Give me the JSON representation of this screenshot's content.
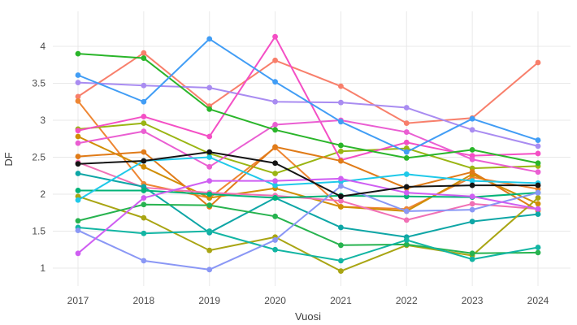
{
  "chart_data": {
    "type": "line",
    "title": "",
    "xlabel": "Vuosi",
    "ylabel": "DF",
    "x": [
      2017,
      2018,
      2019,
      2020,
      2021,
      2022,
      2023,
      2024
    ],
    "xtick_labels": [
      "2017",
      "2018",
      "2019",
      "2020",
      "2021",
      "2022",
      "2023",
      "2024"
    ],
    "yticks": [
      1,
      1.5,
      2,
      2.5,
      3,
      3.5,
      4
    ],
    "ytick_labels": [
      "1",
      "1.5",
      "2",
      "2.5",
      "3",
      "3.5",
      "4"
    ],
    "ylim": [
      0.75,
      4.5
    ],
    "grid": true,
    "legend_position": "none",
    "marker": "circle",
    "grid_color": "#e9e9e9",
    "tick_color": "#4c4c4c",
    "series": [
      {
        "color": "#f87f6b",
        "values": [
          3.32,
          3.91,
          3.19,
          3.81,
          3.46,
          2.96,
          3.03,
          3.78
        ]
      },
      {
        "color": "#a98cf1",
        "values": [
          3.51,
          3.47,
          3.44,
          3.25,
          3.24,
          3.17,
          2.87,
          2.65
        ]
      },
      {
        "color": "#ee8633",
        "values": [
          3.26,
          2.14,
          1.95,
          2.63,
          1.83,
          1.8,
          2.23,
          2.07
        ]
      },
      {
        "color": "#9ab513",
        "values": [
          2.88,
          2.96,
          2.55,
          2.28,
          2.58,
          2.62,
          2.35,
          2.38
        ]
      },
      {
        "color": "#f44fc5",
        "values": [
          2.86,
          3.05,
          2.78,
          4.13,
          2.46,
          2.7,
          2.52,
          2.55
        ]
      },
      {
        "color": "#d08e05",
        "values": [
          2.78,
          2.37,
          1.95,
          2.08,
          1.83,
          1.77,
          2.27,
          1.87
        ]
      },
      {
        "color": "#ea5ed2",
        "values": [
          2.69,
          2.85,
          2.37,
          2.94,
          3.0,
          2.84,
          2.47,
          2.3
        ]
      },
      {
        "color": "#e07b18",
        "values": [
          2.51,
          2.57,
          1.83,
          2.64,
          2.45,
          2.08,
          2.3,
          1.78
        ]
      },
      {
        "color": "#f170b5",
        "values": [
          2.43,
          2.09,
          2.02,
          1.98,
          1.91,
          1.65,
          1.87,
          1.8
        ]
      },
      {
        "color": "#0ea6a6",
        "values": [
          2.28,
          2.1,
          1.48,
          1.95,
          1.55,
          1.42,
          1.63,
          1.73
        ]
      },
      {
        "color": "#02b377",
        "values": [
          2.05,
          2.05,
          2.0,
          1.95,
          1.98,
          1.97,
          1.96,
          2.02
        ]
      },
      {
        "color": "#a9a513",
        "values": [
          1.97,
          1.68,
          1.24,
          1.42,
          0.96,
          1.31,
          1.17,
          1.95
        ]
      },
      {
        "color": "#1fc9e9",
        "values": [
          1.92,
          2.45,
          2.5,
          2.12,
          2.17,
          2.27,
          2.18,
          2.15
        ]
      },
      {
        "color": "#27b34f",
        "values": [
          1.64,
          1.86,
          1.85,
          1.7,
          1.31,
          1.32,
          1.2,
          1.21
        ]
      },
      {
        "color": "#12b5a3",
        "values": [
          1.55,
          1.47,
          1.5,
          1.25,
          1.1,
          1.38,
          1.12,
          1.28
        ]
      },
      {
        "color": "#8a97f5",
        "values": [
          1.51,
          1.1,
          0.98,
          1.38,
          2.11,
          1.77,
          1.79,
          2.02
        ]
      },
      {
        "color": "#cf5ef2",
        "values": [
          1.2,
          1.95,
          2.18,
          2.18,
          2.21,
          2.02,
          1.97,
          1.8
        ]
      },
      {
        "color": "#2ab52a",
        "values": [
          3.9,
          3.84,
          3.15,
          2.87,
          2.66,
          2.49,
          2.6,
          2.42
        ]
      },
      {
        "color": "#419df5",
        "values": [
          3.61,
          3.25,
          4.1,
          3.52,
          2.98,
          2.57,
          3.02,
          2.73
        ]
      },
      {
        "color": "#141414",
        "values": [
          2.41,
          2.45,
          2.57,
          2.42,
          1.97,
          2.1,
          2.12,
          2.12
        ]
      }
    ]
  }
}
